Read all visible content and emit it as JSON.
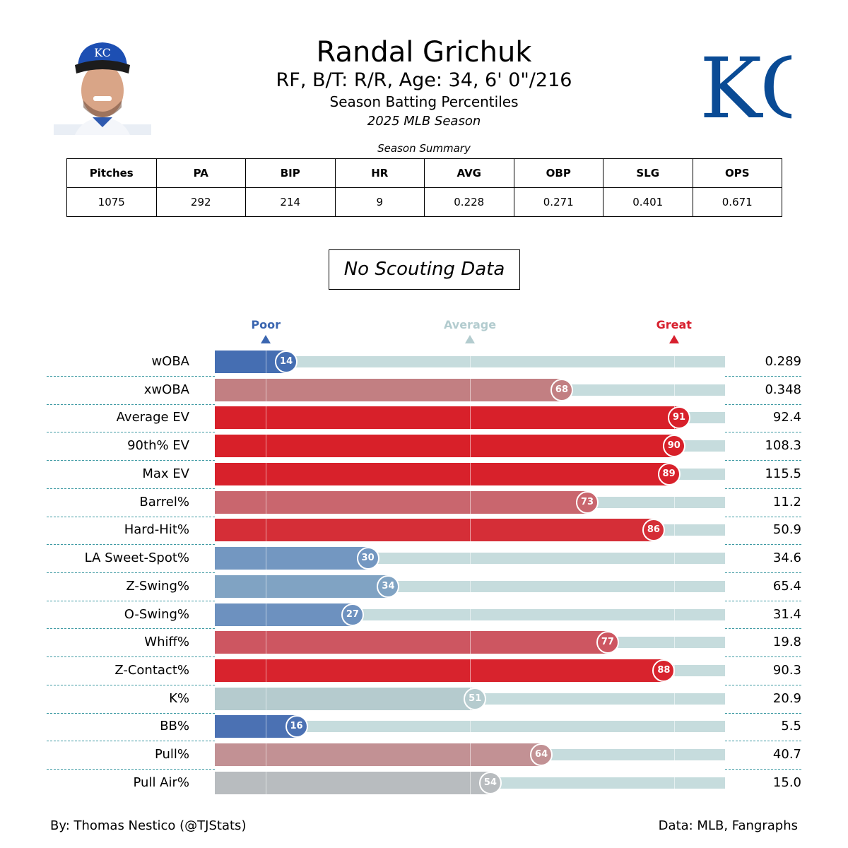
{
  "header": {
    "player_name": "Randal Grichuk",
    "bio": "RF, B/T: R/R, Age: 34, 6' 0\"/216",
    "subtitle": "Season Batting Percentiles",
    "season": "2025 MLB Season",
    "team_logo": "KC",
    "headshot_alt": "player-headshot"
  },
  "summary": {
    "label": "Season Summary",
    "columns": [
      "Pitches",
      "PA",
      "BIP",
      "HR",
      "AVG",
      "OBP",
      "SLG",
      "OPS"
    ],
    "values": [
      "1075",
      "292",
      "214",
      "9",
      "0.228",
      "0.271",
      "0.401",
      "0.671"
    ]
  },
  "scouting": {
    "text": "No Scouting Data"
  },
  "markers": [
    {
      "label": "Poor",
      "pct": 10,
      "color": "#3b66b0"
    },
    {
      "label": "Average",
      "pct": 50,
      "color": "#b3cccf"
    },
    {
      "label": "Great",
      "pct": 90,
      "color": "#d7202e"
    }
  ],
  "chart_data": {
    "type": "bar",
    "orientation": "horizontal",
    "title": "Season Batting Percentiles",
    "xlim": [
      0,
      100
    ],
    "reference_lines": [
      10,
      50,
      90
    ],
    "categories": [
      "wOBA",
      "xwOBA",
      "Average EV",
      "90th% EV",
      "Max EV",
      "Barrel%",
      "Hard-Hit%",
      "LA Sweet-Spot%",
      "Z-Swing%",
      "O-Swing%",
      "Whiff%",
      "Z-Contact%",
      "K%",
      "BB%",
      "Pull%",
      "Pull Air%"
    ],
    "series": [
      {
        "name": "Percentile",
        "values": [
          14,
          68,
          91,
          90,
          89,
          73,
          86,
          30,
          34,
          27,
          77,
          88,
          51,
          16,
          64,
          54
        ]
      },
      {
        "name": "Stat Value",
        "values": [
          "0.289",
          "0.348",
          "92.4",
          "108.3",
          "115.5",
          "11.2",
          "50.9",
          "34.6",
          "65.4",
          "31.4",
          "19.8",
          "90.3",
          "20.9",
          "5.5",
          "40.7",
          "15.0"
        ]
      }
    ],
    "bar_colors": [
      "#456eb2",
      "#c27f82",
      "#d8202a",
      "#d82029",
      "#d8212b",
      "#c9666e",
      "#d52e37",
      "#7397c1",
      "#80a3c3",
      "#6d91bf",
      "#cd5661",
      "#d8232d",
      "#b5cbce",
      "#4b71b3",
      "#c29194",
      "#b8bcbf"
    ]
  },
  "footer": {
    "credit": "By: Thomas Nestico (@TJStats)",
    "source": "Data: MLB, Fangraphs"
  }
}
